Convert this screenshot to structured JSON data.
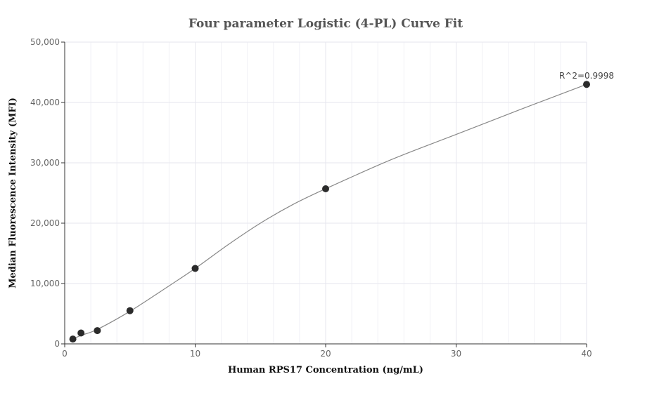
{
  "chart_data": {
    "type": "scatter",
    "title": "Four parameter Logistic (4-PL) Curve Fit",
    "xlabel": "Human RPS17 Concentration (ng/mL)",
    "ylabel": "Median Fluorescence Intensity (MFI)",
    "xlim": [
      0,
      40
    ],
    "ylim": [
      0,
      50000
    ],
    "x_ticks": [
      0,
      10,
      20,
      30,
      40
    ],
    "x_tick_labels": [
      "0",
      "10",
      "20",
      "30",
      "40"
    ],
    "y_ticks": [
      0,
      10000,
      20000,
      30000,
      40000,
      50000
    ],
    "y_tick_labels": [
      "0",
      "10,000",
      "20,000",
      "30,000",
      "40,000",
      "50,000"
    ],
    "grid": true,
    "series": [
      {
        "x": [
          0.625,
          1.25,
          2.5,
          5,
          10,
          20,
          40
        ],
        "y": [
          800,
          1800,
          2200,
          5500,
          12500,
          25700,
          43000
        ]
      }
    ],
    "fit_curve": {
      "x": [
        0.625,
        1.25,
        2.5,
        5,
        7.5,
        10,
        12.5,
        15,
        17.5,
        20,
        25,
        30,
        35,
        40
      ],
      "y": [
        800,
        1400,
        2400,
        5400,
        8900,
        12500,
        16400,
        20000,
        23100,
        25700,
        30500,
        34700,
        38900,
        43000
      ]
    },
    "annotations": [
      {
        "text": "R^2=0.9998",
        "x": 40,
        "y": 43000
      }
    ]
  }
}
